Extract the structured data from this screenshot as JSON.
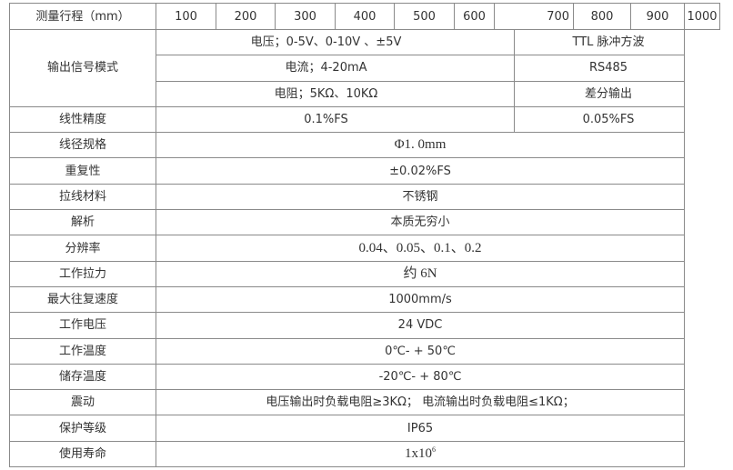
{
  "header": {
    "label": "测量行程（mm）",
    "strokes": [
      "100",
      "200",
      "300",
      "400",
      "500",
      "600",
      "700",
      "800",
      "900",
      "1000"
    ]
  },
  "output_signal": {
    "label": "输出信号模式",
    "rows": [
      {
        "analog": "电压；0-5V、0-10V 、±5V",
        "digital": "TTL 脉冲方波"
      },
      {
        "analog": "电流；4-20mA",
        "digital": "RS485"
      },
      {
        "analog": "电阻；5KΩ、10KΩ",
        "digital": "差分输出"
      }
    ]
  },
  "linearity": {
    "label": "线性精度",
    "analog": "0.1%FS",
    "digital": "0.05%FS"
  },
  "specs": [
    {
      "label": "线径规格",
      "value": "Φ1. 0mm"
    },
    {
      "label": "重复性",
      "value": "±0.02%FS"
    },
    {
      "label": "拉线材料",
      "value": "不锈钢"
    },
    {
      "label": "解析",
      "value": "本质无穷小"
    },
    {
      "label": "分辨率",
      "value": "0.04、0.05、0.1、0.2"
    },
    {
      "label": "工作拉力",
      "value": "约 6N"
    },
    {
      "label": "最大往复速度",
      "value": "1000mm/s"
    },
    {
      "label": "工作电压",
      "value": "24 VDC"
    },
    {
      "label": "工作温度",
      "value": "0℃- + 50℃"
    },
    {
      "label": "储存温度",
      "value": "-20℃- + 80℃"
    },
    {
      "label": "震动",
      "value": "电压输出时负载电阻≥3KΩ； 电流输出时负载电阻≤1KΩ；"
    },
    {
      "label": "保护等级",
      "value": "IP65"
    }
  ],
  "life": {
    "label": "使用寿命",
    "base": "1x10",
    "exponent": "6"
  }
}
